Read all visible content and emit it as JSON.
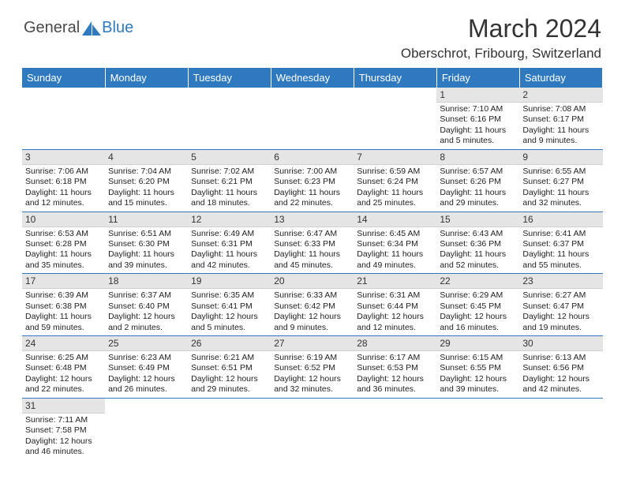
{
  "logo": {
    "text1": "General",
    "text2": "Blue",
    "color1": "#4a4a4a",
    "color2": "#2f7abf"
  },
  "title": "March 2024",
  "subtitle": "Oberschrot, Fribourg, Switzerland",
  "header_bg": "#2f7abf",
  "daynum_bg": "#e6e5e5",
  "accent": "#2f7abf",
  "days_of_week": [
    "Sunday",
    "Monday",
    "Tuesday",
    "Wednesday",
    "Thursday",
    "Friday",
    "Saturday"
  ],
  "weeks": [
    [
      null,
      null,
      null,
      null,
      null,
      {
        "n": "1",
        "sr": "7:10 AM",
        "ss": "6:16 PM",
        "dl": "11 hours and 5 minutes."
      },
      {
        "n": "2",
        "sr": "7:08 AM",
        "ss": "6:17 PM",
        "dl": "11 hours and 9 minutes."
      }
    ],
    [
      {
        "n": "3",
        "sr": "7:06 AM",
        "ss": "6:18 PM",
        "dl": "11 hours and 12 minutes."
      },
      {
        "n": "4",
        "sr": "7:04 AM",
        "ss": "6:20 PM",
        "dl": "11 hours and 15 minutes."
      },
      {
        "n": "5",
        "sr": "7:02 AM",
        "ss": "6:21 PM",
        "dl": "11 hours and 18 minutes."
      },
      {
        "n": "6",
        "sr": "7:00 AM",
        "ss": "6:23 PM",
        "dl": "11 hours and 22 minutes."
      },
      {
        "n": "7",
        "sr": "6:59 AM",
        "ss": "6:24 PM",
        "dl": "11 hours and 25 minutes."
      },
      {
        "n": "8",
        "sr": "6:57 AM",
        "ss": "6:26 PM",
        "dl": "11 hours and 29 minutes."
      },
      {
        "n": "9",
        "sr": "6:55 AM",
        "ss": "6:27 PM",
        "dl": "11 hours and 32 minutes."
      }
    ],
    [
      {
        "n": "10",
        "sr": "6:53 AM",
        "ss": "6:28 PM",
        "dl": "11 hours and 35 minutes."
      },
      {
        "n": "11",
        "sr": "6:51 AM",
        "ss": "6:30 PM",
        "dl": "11 hours and 39 minutes."
      },
      {
        "n": "12",
        "sr": "6:49 AM",
        "ss": "6:31 PM",
        "dl": "11 hours and 42 minutes."
      },
      {
        "n": "13",
        "sr": "6:47 AM",
        "ss": "6:33 PM",
        "dl": "11 hours and 45 minutes."
      },
      {
        "n": "14",
        "sr": "6:45 AM",
        "ss": "6:34 PM",
        "dl": "11 hours and 49 minutes."
      },
      {
        "n": "15",
        "sr": "6:43 AM",
        "ss": "6:36 PM",
        "dl": "11 hours and 52 minutes."
      },
      {
        "n": "16",
        "sr": "6:41 AM",
        "ss": "6:37 PM",
        "dl": "11 hours and 55 minutes."
      }
    ],
    [
      {
        "n": "17",
        "sr": "6:39 AM",
        "ss": "6:38 PM",
        "dl": "11 hours and 59 minutes."
      },
      {
        "n": "18",
        "sr": "6:37 AM",
        "ss": "6:40 PM",
        "dl": "12 hours and 2 minutes."
      },
      {
        "n": "19",
        "sr": "6:35 AM",
        "ss": "6:41 PM",
        "dl": "12 hours and 5 minutes."
      },
      {
        "n": "20",
        "sr": "6:33 AM",
        "ss": "6:42 PM",
        "dl": "12 hours and 9 minutes."
      },
      {
        "n": "21",
        "sr": "6:31 AM",
        "ss": "6:44 PM",
        "dl": "12 hours and 12 minutes."
      },
      {
        "n": "22",
        "sr": "6:29 AM",
        "ss": "6:45 PM",
        "dl": "12 hours and 16 minutes."
      },
      {
        "n": "23",
        "sr": "6:27 AM",
        "ss": "6:47 PM",
        "dl": "12 hours and 19 minutes."
      }
    ],
    [
      {
        "n": "24",
        "sr": "6:25 AM",
        "ss": "6:48 PM",
        "dl": "12 hours and 22 minutes."
      },
      {
        "n": "25",
        "sr": "6:23 AM",
        "ss": "6:49 PM",
        "dl": "12 hours and 26 minutes."
      },
      {
        "n": "26",
        "sr": "6:21 AM",
        "ss": "6:51 PM",
        "dl": "12 hours and 29 minutes."
      },
      {
        "n": "27",
        "sr": "6:19 AM",
        "ss": "6:52 PM",
        "dl": "12 hours and 32 minutes."
      },
      {
        "n": "28",
        "sr": "6:17 AM",
        "ss": "6:53 PM",
        "dl": "12 hours and 36 minutes."
      },
      {
        "n": "29",
        "sr": "6:15 AM",
        "ss": "6:55 PM",
        "dl": "12 hours and 39 minutes."
      },
      {
        "n": "30",
        "sr": "6:13 AM",
        "ss": "6:56 PM",
        "dl": "12 hours and 42 minutes."
      }
    ],
    [
      {
        "n": "31",
        "sr": "7:11 AM",
        "ss": "7:58 PM",
        "dl": "12 hours and 46 minutes."
      },
      null,
      null,
      null,
      null,
      null,
      null
    ]
  ],
  "labels": {
    "sunrise": "Sunrise:",
    "sunset": "Sunset:",
    "daylight": "Daylight:"
  }
}
